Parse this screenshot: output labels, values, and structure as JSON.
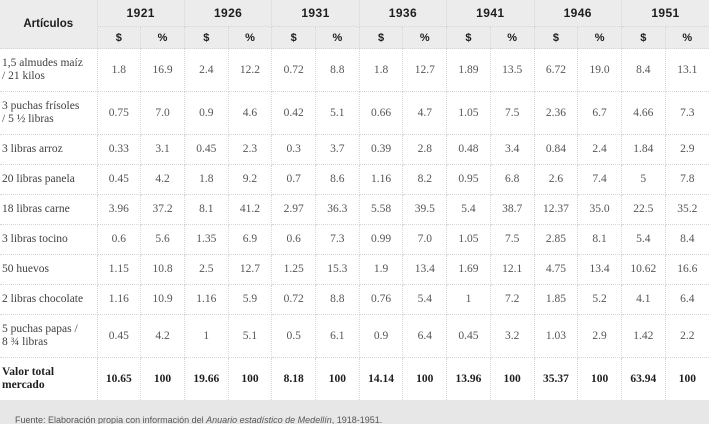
{
  "table": {
    "articles_header": "Artículos",
    "years": [
      "1921",
      "1926",
      "1931",
      "1936",
      "1941",
      "1946",
      "1951"
    ],
    "sub_headers": [
      "$",
      "%"
    ],
    "rows": [
      {
        "label": "1,5 almudes maíz\n/ 21 kilos",
        "values": [
          "1.8",
          "16.9",
          "2.4",
          "12.2",
          "0.72",
          "8.8",
          "1.8",
          "12.7",
          "1.89",
          "13.5",
          "6.72",
          "19.0",
          "8.4",
          "13.1"
        ]
      },
      {
        "label": "3 puchas frísoles\n/ 5 ½ libras",
        "values": [
          "0.75",
          "7.0",
          "0.9",
          "4.6",
          "0.42",
          "5.1",
          "0.66",
          "4.7",
          "1.05",
          "7.5",
          "2.36",
          "6.7",
          "4.66",
          "7.3"
        ]
      },
      {
        "label": "3 libras arroz",
        "values": [
          "0.33",
          "3.1",
          "0.45",
          "2.3",
          "0.3",
          "3.7",
          "0.39",
          "2.8",
          "0.48",
          "3.4",
          "0.84",
          "2.4",
          "1.84",
          "2.9"
        ]
      },
      {
        "label": "20 libras panela",
        "values": [
          "0.45",
          "4.2",
          "1.8",
          "9.2",
          "0.7",
          "8.6",
          "1.16",
          "8.2",
          "0.95",
          "6.8",
          "2.6",
          "7.4",
          "5",
          "7.8"
        ]
      },
      {
        "label": "18 libras carne",
        "values": [
          "3.96",
          "37.2",
          "8.1",
          "41.2",
          "2.97",
          "36.3",
          "5.58",
          "39.5",
          "5.4",
          "38.7",
          "12.37",
          "35.0",
          "22.5",
          "35.2"
        ]
      },
      {
        "label": "3 libras tocino",
        "values": [
          "0.6",
          "5.6",
          "1.35",
          "6.9",
          "0.6",
          "7.3",
          "0.99",
          "7.0",
          "1.05",
          "7.5",
          "2.85",
          "8.1",
          "5.4",
          "8.4"
        ]
      },
      {
        "label": "50 huevos",
        "values": [
          "1.15",
          "10.8",
          "2.5",
          "12.7",
          "1.25",
          "15.3",
          "1.9",
          "13.4",
          "1.69",
          "12.1",
          "4.75",
          "13.4",
          "10.62",
          "16.6"
        ]
      },
      {
        "label": "2 libras chocolate",
        "values": [
          "1.16",
          "10.9",
          "1.16",
          "5.9",
          "0.72",
          "8.8",
          "0.76",
          "5.4",
          "1",
          "7.2",
          "1.85",
          "5.2",
          "4.1",
          "6.4"
        ]
      },
      {
        "label": "5 puchas papas /\n8 ¾ libras",
        "values": [
          "0.45",
          "4.2",
          "1",
          "5.1",
          "0.5",
          "6.1",
          "0.9",
          "6.4",
          "0.45",
          "3.2",
          "1.03",
          "2.9",
          "1.42",
          "2.2"
        ]
      },
      {
        "label": "Valor total\nmercado",
        "bold": true,
        "values": [
          "10.65",
          "100",
          "19.66",
          "100",
          "8.18",
          "100",
          "14.14",
          "100",
          "13.96",
          "100",
          "35.37",
          "100",
          "63.94",
          "100"
        ]
      }
    ],
    "source_note": {
      "prefix": "Fuente: Elaboración propia con información del ",
      "italic": "Anuario estadístico de Medellín",
      "suffix": ", 1918-1951."
    }
  },
  "colors": {
    "page_bg": "#ffffff",
    "header_bg": "#ececec",
    "footer_bg": "#e7e7e7",
    "border": "#d6d6d6",
    "value_text": "#565656",
    "label_text": "#3f3f3f",
    "bold_text": "#1f1f1f"
  }
}
